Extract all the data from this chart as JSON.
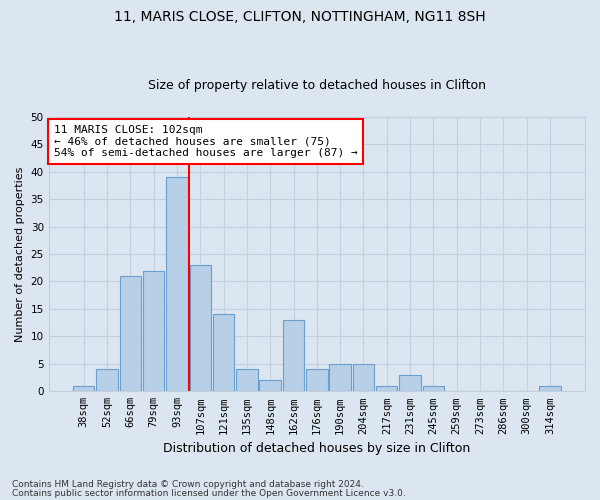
{
  "title1": "11, MARIS CLOSE, CLIFTON, NOTTINGHAM, NG11 8SH",
  "title2": "Size of property relative to detached houses in Clifton",
  "xlabel": "Distribution of detached houses by size in Clifton",
  "ylabel": "Number of detached properties",
  "categories": [
    "38sqm",
    "52sqm",
    "66sqm",
    "79sqm",
    "93sqm",
    "107sqm",
    "121sqm",
    "135sqm",
    "148sqm",
    "162sqm",
    "176sqm",
    "190sqm",
    "204sqm",
    "217sqm",
    "231sqm",
    "245sqm",
    "259sqm",
    "273sqm",
    "286sqm",
    "300sqm",
    "314sqm"
  ],
  "values": [
    1,
    4,
    21,
    22,
    39,
    23,
    14,
    4,
    2,
    13,
    4,
    5,
    5,
    1,
    3,
    1,
    0,
    0,
    0,
    0,
    1
  ],
  "bar_color": "#b8cfe8",
  "bar_edge_color": "#6a9fd0",
  "vline_x_index": 5,
  "vline_color": "red",
  "ylim": [
    0,
    50
  ],
  "yticks": [
    0,
    5,
    10,
    15,
    20,
    25,
    30,
    35,
    40,
    45,
    50
  ],
  "annotation_line1": "11 MARIS CLOSE: 102sqm",
  "annotation_line2": "← 46% of detached houses are smaller (75)",
  "annotation_line3": "54% of semi-detached houses are larger (87) →",
  "annotation_box_color": "white",
  "annotation_box_edge": "red",
  "footer1": "Contains HM Land Registry data © Crown copyright and database right 2024.",
  "footer2": "Contains public sector information licensed under the Open Government Licence v3.0.",
  "background_color": "#dce6f0",
  "grid_color": "#c5d0de",
  "title1_fontsize": 10,
  "title2_fontsize": 9,
  "xlabel_fontsize": 9,
  "ylabel_fontsize": 8,
  "tick_fontsize": 7.5,
  "annot_fontsize": 8
}
